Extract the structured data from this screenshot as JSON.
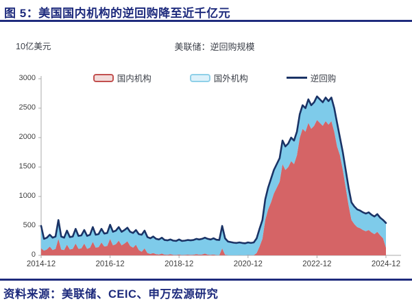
{
  "header": {
    "title": "图 5：美国国内机构的逆回购降至近千亿元"
  },
  "chart": {
    "unit_label": "10亿美元",
    "chart_title": "美联储：逆回购规模"
  },
  "footer": {
    "source": "资料来源：美联储、CEIC、申万宏源研究"
  },
  "colors": {
    "navy": "#1e2b7d",
    "line": "#1a3366",
    "domestic_fill": "#d56466",
    "foreign_fill": "#7ecbea",
    "axis": "#a8a8a8",
    "tick_text": "#404040"
  },
  "chart_data": {
    "type": "area",
    "title": "美联储：逆回购规模",
    "ylabel": "10亿美元",
    "ylim": [
      0,
      3000
    ],
    "yticks": [
      0,
      500,
      1000,
      1500,
      2000,
      2500,
      3000
    ],
    "x_start": "2014-12",
    "x_step": "monthly",
    "n_points": 121,
    "xticks": [
      {
        "label": "2014-12",
        "month_index": 0
      },
      {
        "label": "2016-12",
        "month_index": 24
      },
      {
        "label": "2018-12",
        "month_index": 48
      },
      {
        "label": "2020-12",
        "month_index": 72
      },
      {
        "label": "2022-12",
        "month_index": 96
      },
      {
        "label": "2024-12",
        "month_index": 120
      }
    ],
    "grid": false,
    "legend_position": "top",
    "series": [
      {
        "name": "国内机构",
        "kind": "area",
        "stack_order": 1,
        "color": "#d56466",
        "legend_border": "#c2504f",
        "legend_fill": "#f2dcdb",
        "values": [
          120,
          80,
          100,
          150,
          90,
          110,
          280,
          100,
          90,
          180,
          100,
          110,
          200,
          110,
          120,
          200,
          110,
          130,
          230,
          130,
          140,
          220,
          150,
          160,
          280,
          170,
          190,
          250,
          170,
          200,
          240,
          160,
          130,
          180,
          90,
          60,
          120,
          40,
          25,
          40,
          20,
          15,
          30,
          12,
          10,
          20,
          8,
          6,
          15,
          5,
          8,
          12,
          8,
          10,
          20,
          12,
          15,
          30,
          12,
          8,
          15,
          5,
          4,
          120,
          10,
          2,
          1,
          1,
          1,
          2,
          1,
          1,
          5,
          2,
          3,
          40,
          150,
          280,
          600,
          780,
          900,
          1050,
          1150,
          1250,
          1550,
          1450,
          1500,
          1600,
          1550,
          1700,
          2000,
          2150,
          2100,
          2250,
          2150,
          2200,
          2300,
          2250,
          2200,
          2280,
          2220,
          2280,
          2100,
          1850,
          1700,
          1450,
          1150,
          850,
          600,
          530,
          480,
          460,
          430,
          410,
          430,
          390,
          360,
          400,
          340,
          290,
          130
        ]
      },
      {
        "name": "国外机构",
        "kind": "area",
        "stack_order": 2,
        "color": "#7ecbea",
        "legend_border": "#8fd0e8",
        "legend_fill": "#ddf1fa",
        "values": [
          380,
          200,
          200,
          200,
          210,
          210,
          320,
          220,
          210,
          240,
          210,
          210,
          250,
          220,
          220,
          230,
          220,
          220,
          250,
          220,
          220,
          230,
          220,
          220,
          240,
          230,
          230,
          230,
          230,
          230,
          230,
          240,
          250,
          250,
          270,
          290,
          300,
          270,
          265,
          280,
          260,
          255,
          270,
          248,
          245,
          250,
          242,
          239,
          255,
          240,
          242,
          248,
          247,
          250,
          260,
          258,
          265,
          270,
          268,
          262,
          275,
          260,
          256,
          380,
          280,
          233,
          224,
          214,
          209,
          218,
          209,
          204,
          215,
          208,
          217,
          250,
          300,
          320,
          350,
          370,
          400,
          400,
          400,
          400,
          400,
          400,
          400,
          400,
          400,
          400,
          400,
          400,
          400,
          400,
          400,
          400,
          400,
          400,
          400,
          400,
          400,
          400,
          400,
          400,
          300,
          300,
          300,
          300,
          300,
          300,
          300,
          300,
          300,
          300,
          300,
          300,
          300,
          300,
          300,
          310,
          420
        ]
      },
      {
        "name": "逆回购",
        "kind": "line",
        "color": "#1a3366",
        "values": [
          500,
          280,
          300,
          350,
          300,
          320,
          600,
          320,
          300,
          420,
          310,
          320,
          450,
          330,
          340,
          430,
          330,
          350,
          480,
          350,
          360,
          450,
          370,
          380,
          520,
          400,
          420,
          480,
          400,
          430,
          470,
          400,
          380,
          430,
          360,
          350,
          420,
          310,
          290,
          320,
          280,
          270,
          300,
          260,
          255,
          270,
          250,
          245,
          270,
          245,
          250,
          260,
          255,
          260,
          280,
          270,
          280,
          300,
          280,
          270,
          290,
          265,
          260,
          500,
          290,
          235,
          225,
          215,
          210,
          220,
          210,
          205,
          220,
          210,
          220,
          290,
          450,
          600,
          950,
          1150,
          1300,
          1450,
          1550,
          1650,
          1950,
          1850,
          1900,
          2000,
          1950,
          2100,
          2400,
          2550,
          2500,
          2650,
          2550,
          2600,
          2700,
          2650,
          2600,
          2680,
          2620,
          2680,
          2500,
          2250,
          2000,
          1750,
          1450,
          1150,
          900,
          830,
          780,
          760,
          730,
          710,
          730,
          690,
          660,
          700,
          640,
          600,
          550
        ]
      }
    ]
  }
}
